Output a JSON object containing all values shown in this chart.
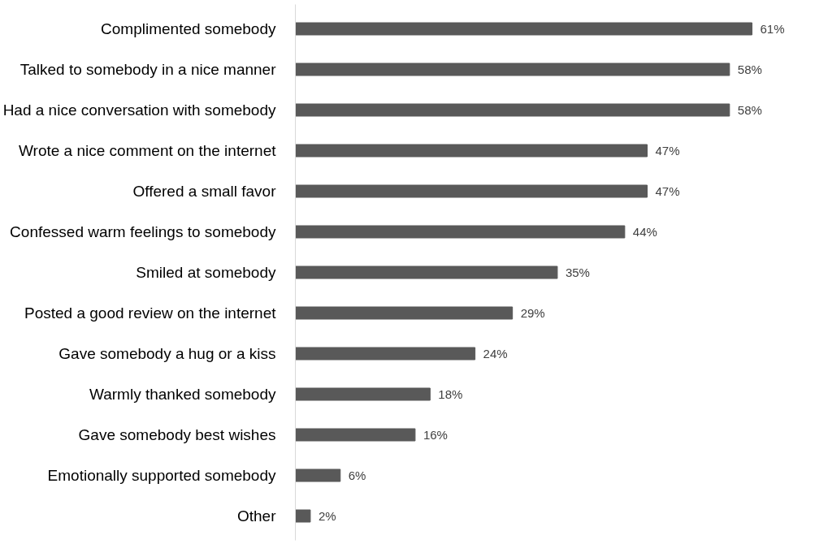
{
  "chart_data": {
    "type": "bar",
    "orientation": "horizontal",
    "categories": [
      "Complimented somebody",
      "Talked to somebody in a nice manner",
      "Had a nice conversation with somebody",
      "Wrote a nice comment on the internet",
      "Offered a small favor",
      "Confessed warm feelings to somebody",
      "Smiled at somebody",
      "Posted a good review on the internet",
      "Gave somebody a hug or a kiss",
      "Warmly thanked somebody",
      "Gave somebody best wishes",
      "Emotionally supported somebody",
      "Other"
    ],
    "values": [
      61,
      58,
      58,
      47,
      47,
      44,
      35,
      29,
      24,
      18,
      16,
      6,
      2
    ],
    "value_labels": [
      "61%",
      "58%",
      "58%",
      "47%",
      "47%",
      "44%",
      "35%",
      "29%",
      "24%",
      "18%",
      "16%",
      "6%",
      "2%"
    ],
    "color": "#595959",
    "grid": false,
    "tick_labels": "y"
  }
}
